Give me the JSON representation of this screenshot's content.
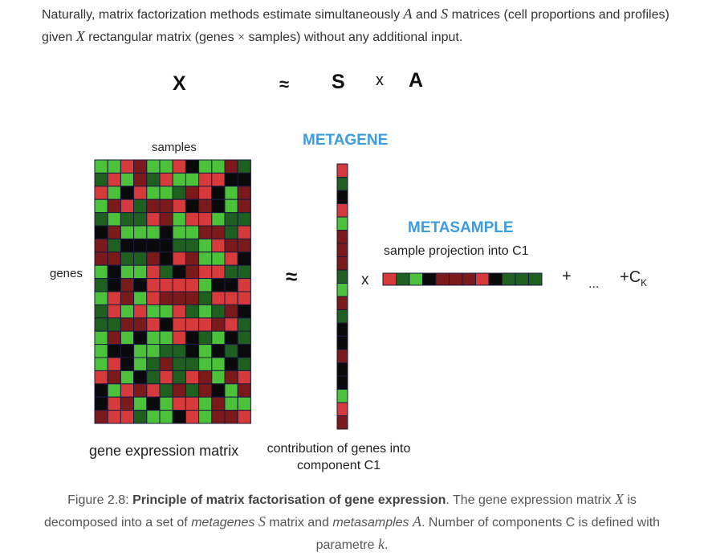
{
  "intro": {
    "part1": "Naturally, matrix factorization methods estimate simultaneously ",
    "var_a": "A",
    "part2": " and ",
    "var_s": "S",
    "part3": " matrices (cell proportions and profiles) given ",
    "var_x": "X",
    "part4": " rectangular matrix (genes ",
    "times": "×",
    "part5": " samples) without any additional input."
  },
  "equation": {
    "x": "X",
    "approx": "≈",
    "s": "S",
    "times": "x",
    "a": "A"
  },
  "figure": {
    "samples_label": "samples",
    "genes_label": "genes",
    "approx": "≈",
    "metagene_title": "METAGENE",
    "metasample_title": "METASAMPLE",
    "sample_projection": "sample projection into C1",
    "times": "x",
    "plus": "+",
    "ellipsis": "...",
    "plus_c": "+",
    "c_letter": "C",
    "c_sub": "K",
    "gene_matrix_label": "gene expression matrix",
    "contribution_line1": "contribution of genes into",
    "contribution_line2": "component C1"
  },
  "colors": {
    "heading_blue": "#3d9be0",
    "red": "#d63a3a",
    "dark_red": "#7a1a1a",
    "green": "#4cc13a",
    "dark_green": "#1f5f1f",
    "black": "#0a0a0a",
    "grid_line": "#1a1a40"
  },
  "caption": {
    "prefix": "Figure 2.8: ",
    "bold": "Principle of matrix factorisation of gene expression",
    "p1": ". The gene expression matrix ",
    "var_x": "X",
    "p2": " is decomposed into a set of ",
    "metagenes": "metagenes",
    "space1": " ",
    "var_s": "S",
    "p3": " matrix and ",
    "metasamples": "metasamples",
    "space2": " ",
    "var_a": "A",
    "p4": ". Number of components C is defined with parametre ",
    "var_k": "k",
    "p5": "."
  }
}
